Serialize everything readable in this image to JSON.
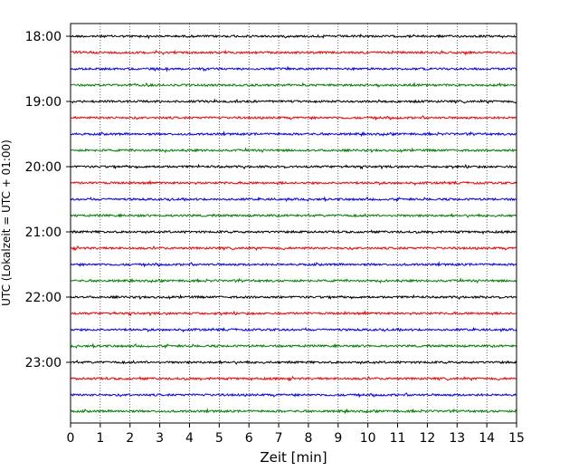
{
  "chart_data": {
    "type": "line",
    "title": "",
    "xlabel": "Zeit  [min]",
    "ylabel": "UTC (Lokalzeit = UTC + 01:00)",
    "xlim": [
      0,
      15
    ],
    "x_ticks": [
      "0",
      "1",
      "2",
      "3",
      "4",
      "5",
      "6",
      "7",
      "8",
      "9",
      "10",
      "11",
      "12",
      "13",
      "14",
      "15"
    ],
    "y_tick_labels": [
      "18:00",
      "19:00",
      "20:00",
      "21:00",
      "22:00",
      "23:00"
    ],
    "row_interval_minutes": 15,
    "row_start": "18:00",
    "row_count": 24,
    "trace_colors": [
      "#000000",
      "#ff0000",
      "#0000ff",
      "#008000"
    ],
    "grid": "vertical dotted",
    "legend": "none"
  }
}
